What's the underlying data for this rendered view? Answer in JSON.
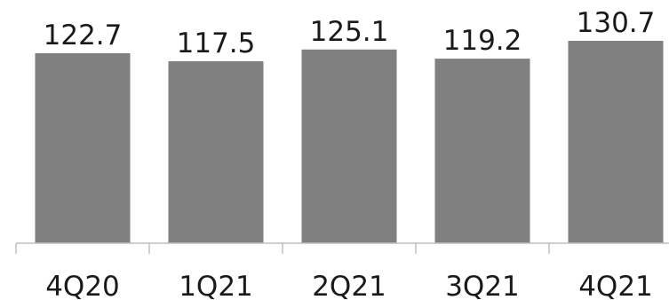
{
  "chart_data": {
    "type": "bar",
    "categories": [
      "4Q20",
      "1Q21",
      "2Q21",
      "3Q21",
      "4Q21"
    ],
    "values": [
      122.7,
      117.5,
      125.1,
      119.2,
      130.7
    ],
    "title": "",
    "xlabel": "",
    "ylabel": "",
    "ylim": [
      0,
      130.7
    ],
    "grid": false,
    "legend": "none",
    "colors": {
      "bar": "#808080",
      "axis": "#bfbfbf",
      "text": "#1a1a1a"
    }
  }
}
